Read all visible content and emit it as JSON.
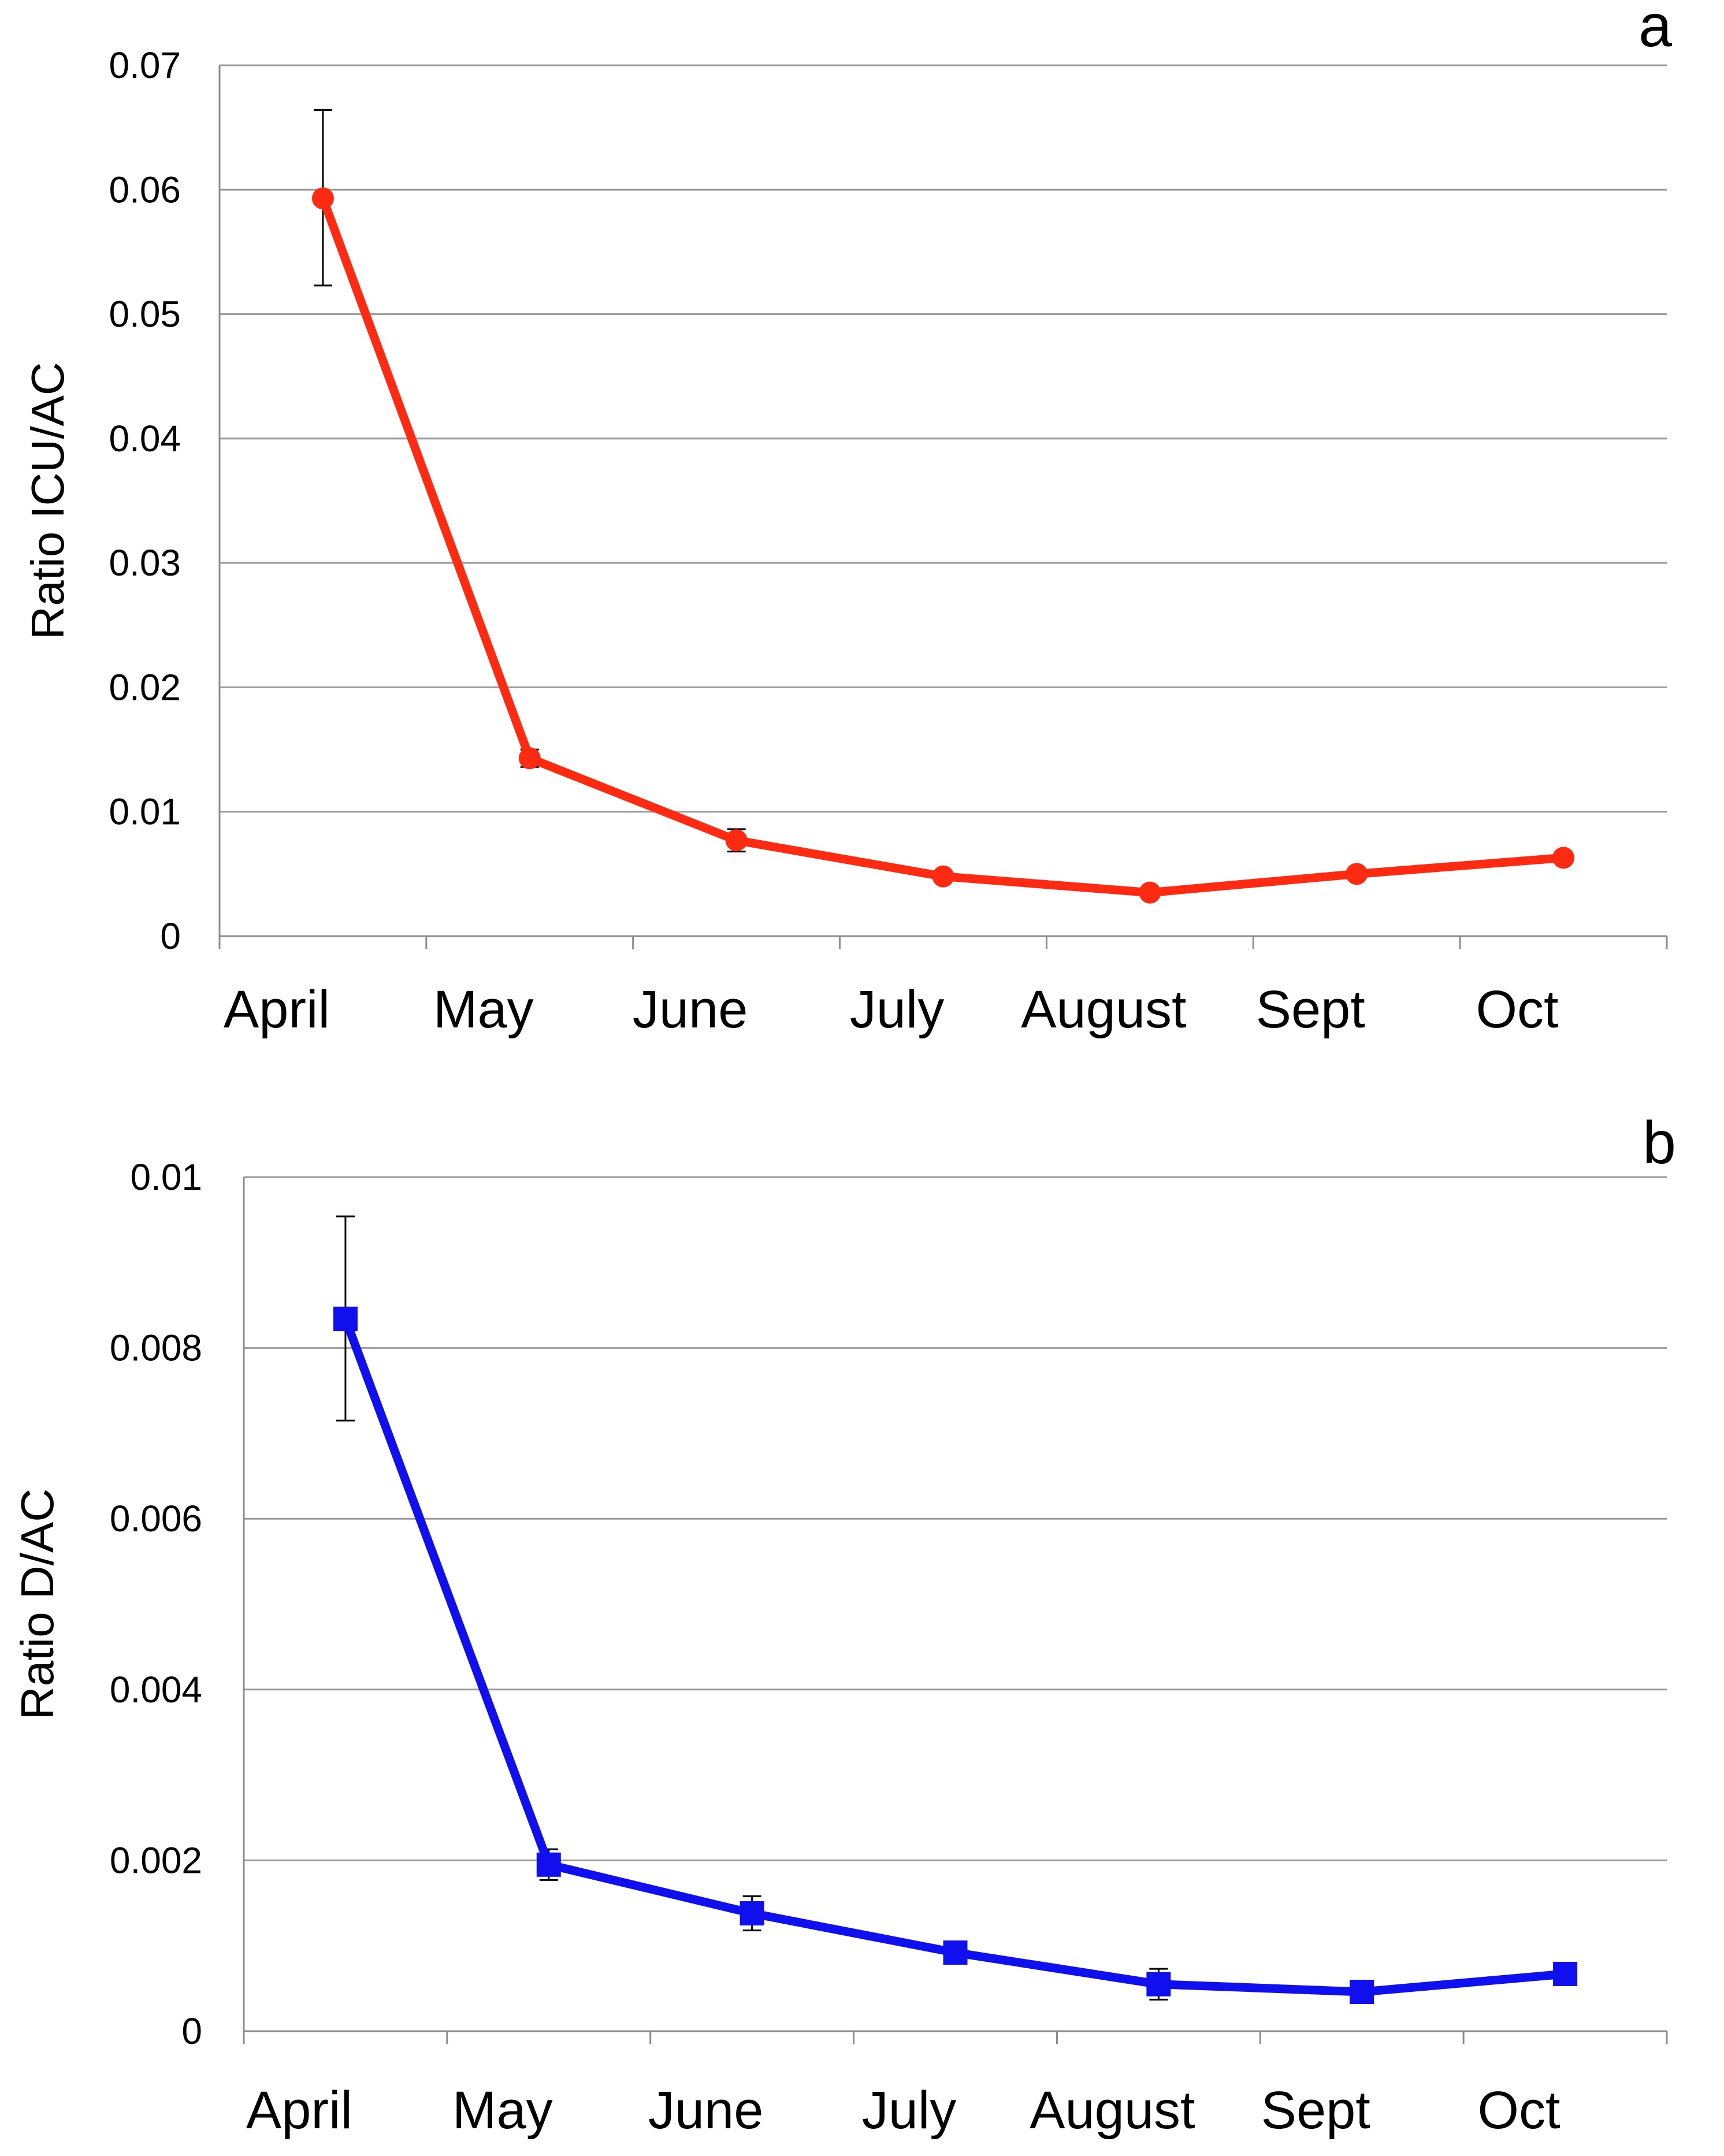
{
  "colors": {
    "series_a": "#ff2a12",
    "series_b": "#1010ee",
    "grid": "#9a9a9a",
    "axis": "#8c8c8c",
    "error_bar": "#000000"
  },
  "chart_data": [
    {
      "type": "line",
      "panel": "a",
      "categories": [
        "April",
        "May",
        "June",
        "July",
        "August",
        "Sept",
        "Oct"
      ],
      "ylabel": "Ratio ICU/AC",
      "ylim": [
        0,
        0.07
      ],
      "yticks": [
        0,
        0.01,
        0.02,
        0.03,
        0.04,
        0.05,
        0.06,
        0.07
      ],
      "ytick_labels": [
        "0",
        "0.01",
        "0.02",
        "0.03",
        "0.04",
        "0.05",
        "0.06",
        "0.07"
      ],
      "grid": true,
      "marker": "circle",
      "series": [
        {
          "values": [
            0.0593,
            0.0143,
            0.0077,
            0.0048,
            0.0035,
            0.005,
            0.0063
          ],
          "error_low": [
            0.0523,
            0.0136,
            0.0068,
            0.0046,
            0.0033,
            0.0048,
            0.0061
          ],
          "error_high": [
            0.0664,
            0.015,
            0.0086,
            0.005,
            0.0037,
            0.0052,
            0.0065
          ]
        }
      ]
    },
    {
      "type": "line",
      "panel": "b",
      "categories": [
        "April",
        "May",
        "June",
        "July",
        "August",
        "Sept",
        "Oct"
      ],
      "ylabel": "Ratio D/AC",
      "ylim": [
        0,
        0.01
      ],
      "yticks": [
        0,
        0.002,
        0.004,
        0.006,
        0.008,
        0.01
      ],
      "ytick_labels": [
        "0",
        "0.002",
        "0.004",
        "0.006",
        "0.008",
        "0.01"
      ],
      "grid": true,
      "marker": "square",
      "series": [
        {
          "values": [
            0.00834,
            0.00195,
            0.00138,
            0.00092,
            0.00055,
            0.00046,
            0.00067
          ],
          "error_low": [
            0.00715,
            0.00177,
            0.00118,
            0.00088,
            0.00037,
            0.00043,
            0.00064
          ],
          "error_high": [
            0.00954,
            0.00213,
            0.00158,
            0.00096,
            0.00073,
            0.00049,
            0.0007
          ]
        }
      ]
    }
  ]
}
